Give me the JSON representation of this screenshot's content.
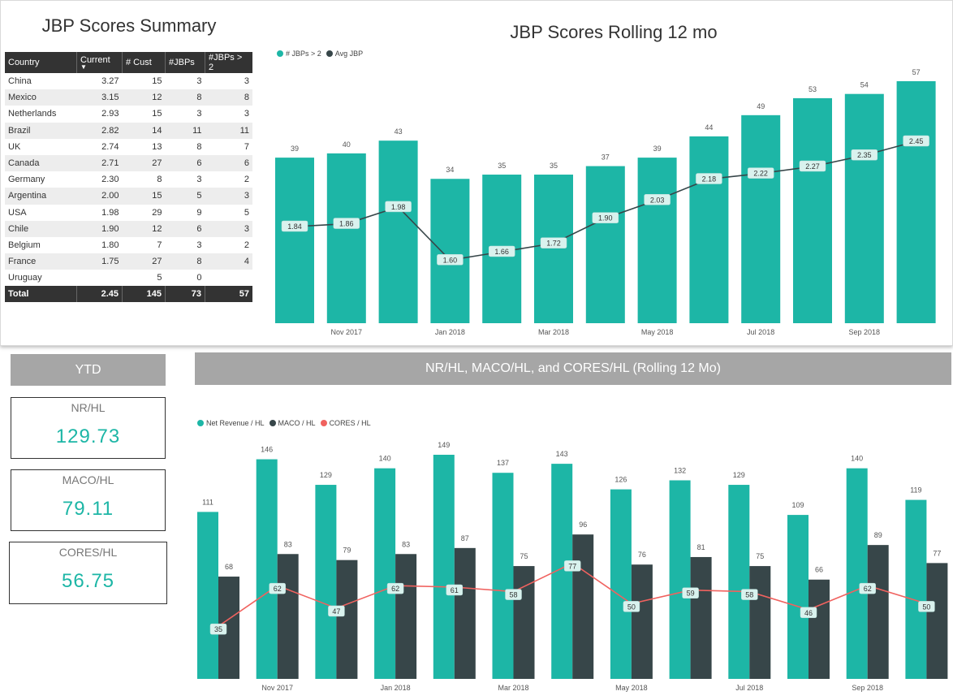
{
  "summary": {
    "title": "JBP Scores Summary",
    "columns": [
      "Country",
      "Current",
      "# Cust",
      "#JBPs",
      "#JBPs > 2"
    ],
    "rows": [
      [
        "China",
        "3.27",
        "15",
        "3",
        "3"
      ],
      [
        "Mexico",
        "3.15",
        "12",
        "8",
        "8"
      ],
      [
        "Netherlands",
        "2.93",
        "15",
        "3",
        "3"
      ],
      [
        "Brazil",
        "2.82",
        "14",
        "11",
        "11"
      ],
      [
        "UK",
        "2.74",
        "13",
        "8",
        "7"
      ],
      [
        "Canada",
        "2.71",
        "27",
        "6",
        "6"
      ],
      [
        "Germany",
        "2.30",
        "8",
        "3",
        "2"
      ],
      [
        "Argentina",
        "2.00",
        "15",
        "5",
        "3"
      ],
      [
        "USA",
        "1.98",
        "29",
        "9",
        "5"
      ],
      [
        "Chile",
        "1.90",
        "12",
        "6",
        "3"
      ],
      [
        "Belgium",
        "1.80",
        "7",
        "3",
        "2"
      ],
      [
        "France",
        "1.75",
        "27",
        "8",
        "4"
      ],
      [
        "Uruguay",
        "",
        "5",
        "0",
        ""
      ]
    ],
    "total": [
      "Total",
      "2.45",
      "145",
      "73",
      "57"
    ]
  },
  "ytd": {
    "header": "YTD",
    "cards": [
      {
        "label": "NR/HL",
        "value": "129.73"
      },
      {
        "label": "MACO/HL",
        "value": "79.11"
      },
      {
        "label": "CORES/HL",
        "value": "56.75"
      }
    ]
  },
  "colors": {
    "teal": "#1db6a6",
    "dark": "#374649",
    "red": "#f0625f",
    "header_gray": "#a6a6a6"
  },
  "chart_data": [
    {
      "type": "bar",
      "title": "JBP Scores Rolling 12 mo",
      "x_tick_labels": [
        "Nov 2017",
        "Jan 2018",
        "Mar 2018",
        "May 2018",
        "Jul 2018",
        "Sep 2018"
      ],
      "x_tick_index": [
        1,
        3,
        5,
        7,
        9,
        11
      ],
      "legend_position": "top-left",
      "series": [
        {
          "name": "# JBPs > 2",
          "kind": "bar",
          "color": "#1db6a6",
          "values": [
            39,
            40,
            43,
            34,
            35,
            35,
            37,
            39,
            44,
            49,
            53,
            54,
            57
          ]
        },
        {
          "name": "Avg JBP",
          "kind": "line",
          "color": "#374649",
          "values": [
            1.84,
            1.86,
            1.98,
            1.6,
            1.66,
            1.72,
            1.9,
            2.03,
            2.18,
            2.22,
            2.27,
            2.35,
            2.45
          ]
        }
      ]
    },
    {
      "type": "bar",
      "title": "NR/HL, MACO/HL, and CORES/HL (Rolling 12 Mo)",
      "x_tick_labels": [
        "Nov 2017",
        "Jan 2018",
        "Mar 2018",
        "May 2018",
        "Jul 2018",
        "Sep 2018"
      ],
      "x_tick_index": [
        1,
        3,
        5,
        7,
        9,
        11
      ],
      "legend_position": "top-left",
      "series": [
        {
          "name": "Net Revenue / HL",
          "kind": "bar",
          "color": "#1db6a6",
          "values": [
            111,
            146,
            129,
            140,
            149,
            137,
            143,
            126,
            132,
            129,
            109,
            140,
            119
          ]
        },
        {
          "name": "MACO / HL",
          "kind": "bar",
          "color": "#374649",
          "values": [
            68,
            83,
            79,
            83,
            87,
            75,
            96,
            76,
            81,
            75,
            66,
            89,
            77
          ]
        },
        {
          "name": "CORES / HL",
          "kind": "line",
          "color": "#f0625f",
          "values": [
            35,
            62,
            47,
            62,
            61,
            58,
            77,
            50,
            59,
            58,
            46,
            62,
            50
          ]
        }
      ]
    }
  ]
}
